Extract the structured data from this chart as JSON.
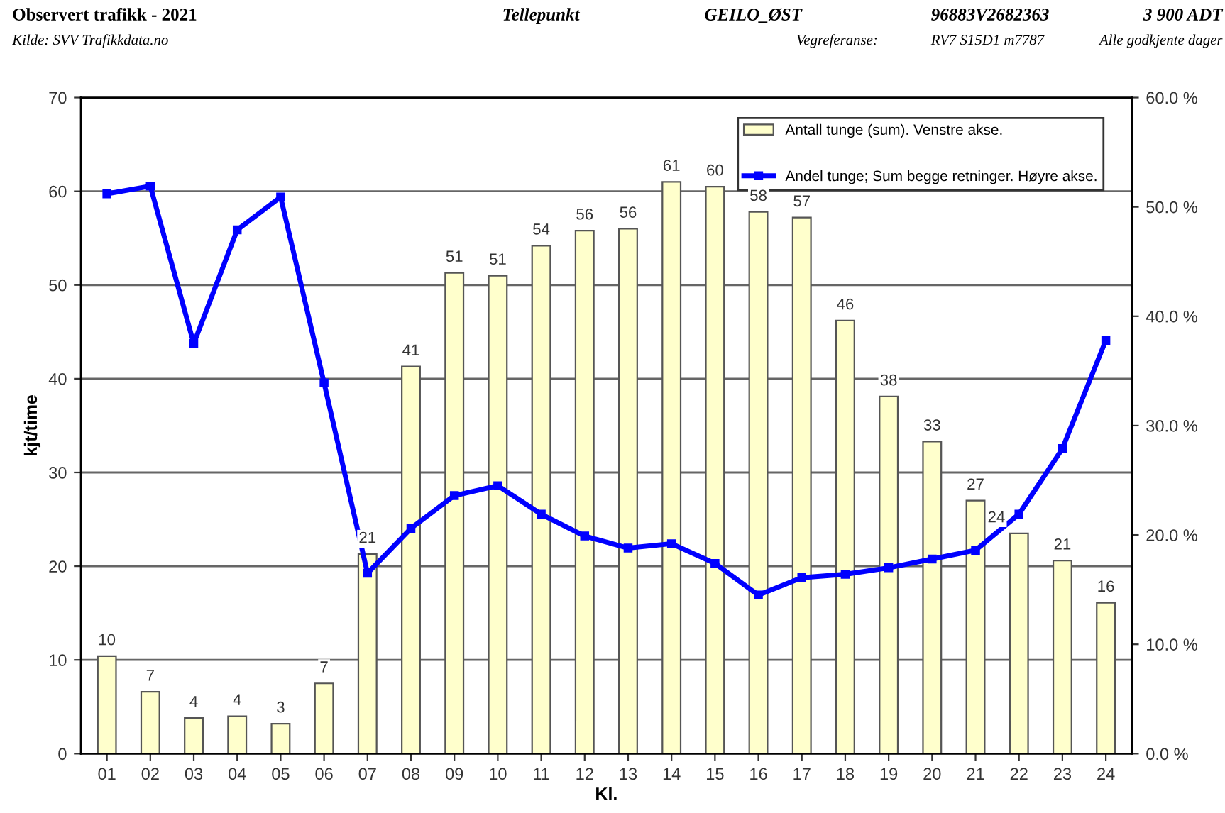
{
  "chart_data": {
    "type": "bar",
    "title": "Observert trafikk - 2021",
    "annotations": [
      "Tellepunkt",
      "GEILO_ØST",
      "96883V2682363",
      "3 900 ADT",
      "Kilde: SVV Trafikkdata.no",
      "Vegreferanse:",
      "RV7 S15D1 m7787",
      "Alle godkjente dager"
    ],
    "xlabel": "Kl.",
    "ylabel": "kjt/time",
    "categories": [
      "01",
      "02",
      "03",
      "04",
      "05",
      "06",
      "07",
      "08",
      "09",
      "10",
      "11",
      "12",
      "13",
      "14",
      "15",
      "16",
      "17",
      "18",
      "19",
      "20",
      "21",
      "22",
      "23",
      "24"
    ],
    "series": [
      {
        "name": "Antall tunge (sum). Venstre akse.",
        "color": "#ffffcc",
        "values": [
          10.4,
          6.6,
          3.8,
          4.0,
          3.2,
          7.5,
          21.3,
          41.3,
          51.3,
          51.0,
          54.2,
          55.8,
          56.0,
          61.0,
          60.5,
          57.8,
          57.2,
          46.2,
          38.1,
          33.3,
          27.0,
          23.5,
          20.6,
          16.1
        ],
        "value_labels": [
          "10",
          "7",
          "4",
          "4",
          "3",
          "7",
          "21",
          "41",
          "51",
          "51",
          "54",
          "56",
          "56",
          "61",
          "60",
          "58",
          "57",
          "46",
          "38",
          "33",
          "27",
          "24",
          "21",
          "16"
        ]
      },
      {
        "name": "Andel tunge; Sum begge retninger. Høyre akse.",
        "type": "line",
        "axis": "y2",
        "color": "#0000ff",
        "marker": "square",
        "line_style": "solid",
        "values": [
          51.2,
          51.9,
          37.5,
          47.9,
          50.9,
          33.9,
          16.5,
          20.6,
          23.6,
          24.5,
          21.9,
          19.9,
          18.8,
          19.2,
          17.4,
          14.5,
          16.1,
          16.4,
          17.0,
          17.8,
          18.6,
          21.9,
          27.9,
          37.8
        ]
      }
    ],
    "ylim": [
      0,
      70
    ],
    "yticks": [
      0,
      10,
      20,
      30,
      40,
      50,
      60,
      70
    ],
    "y2lim": [
      0,
      60
    ],
    "y2ticks": [
      {
        "value": 0,
        "label": "0.0 %"
      },
      {
        "value": 10,
        "label": "10.0 %"
      },
      {
        "value": 20,
        "label": "20.0 %"
      },
      {
        "value": 30,
        "label": "30.0 %"
      },
      {
        "value": 40,
        "label": "40.0 %"
      },
      {
        "value": 50,
        "label": "50.0 %"
      },
      {
        "value": 60,
        "label": "60.0 %"
      }
    ],
    "grid": "y",
    "legend": "top right"
  }
}
